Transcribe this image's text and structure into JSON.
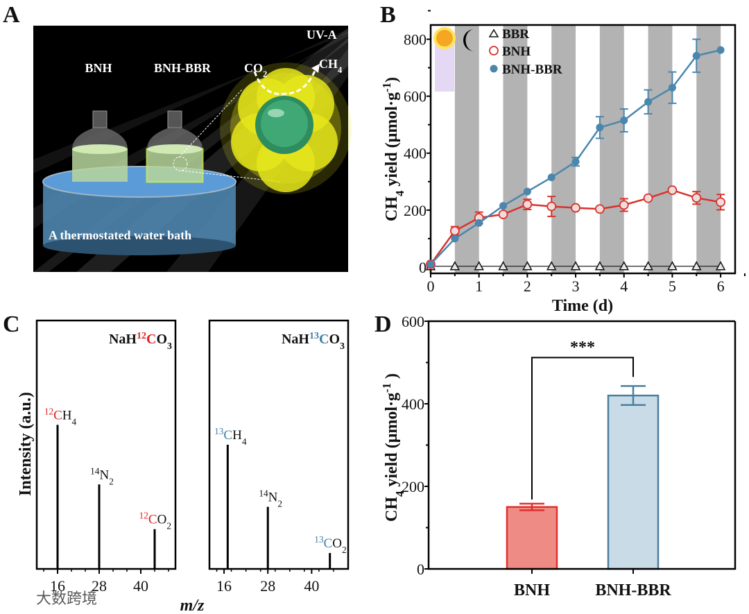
{
  "panels": {
    "a": "A",
    "b": "B",
    "c": "C",
    "d": "D"
  },
  "illustration": {
    "bnh": "BNH",
    "bnh_bbr": "BNH-BBR",
    "co2": [
      {
        "t": "CO"
      },
      {
        "t": "2",
        "sub": true
      }
    ],
    "ch4": [
      {
        "t": "CH"
      },
      {
        "t": "4",
        "sub": true
      }
    ],
    "uv": "UV-A",
    "bath": "A thermostated water bath",
    "colors": {
      "uv": "#e0507a",
      "bath": "#4f86b0",
      "liquid": "#b8d69c",
      "cluster": "#e6e61c",
      "core": "#3fa874"
    }
  },
  "watermark": "大数跨境",
  "chart_data": [
    {
      "id": "B",
      "type": "line",
      "title": "",
      "xlabel": "Time (d)",
      "ylabel": [
        {
          "t": "CH"
        },
        {
          "t": "4",
          "sub": true
        },
        {
          "t": " yield (μmol·g"
        },
        {
          "t": "-1",
          "sup": true
        },
        {
          "t": ")"
        }
      ],
      "xlim": [
        0,
        6.3
      ],
      "ylim": [
        -22,
        850
      ],
      "xticks": [
        "0",
        "1",
        "2",
        "3",
        "4",
        "5",
        "6"
      ],
      "yticks": [
        "0",
        "200",
        "400",
        "600",
        "800"
      ],
      "dark_intervals": [
        [
          0.5,
          1
        ],
        [
          1.5,
          2
        ],
        [
          2.5,
          3
        ],
        [
          3.5,
          4
        ],
        [
          4.5,
          5
        ],
        [
          5.5,
          6
        ]
      ],
      "light_dark_icons": [
        "sun-icon",
        "moon-icon"
      ],
      "legend_position": "top-left",
      "series": [
        {
          "name": "BBR",
          "marker": "triangle-open",
          "color": "#222222",
          "x": [
            0,
            0.5,
            1,
            1.5,
            2,
            2.5,
            3,
            3.5,
            4,
            4.5,
            5,
            5.5,
            6
          ],
          "y": [
            3,
            3,
            3,
            3,
            3,
            3,
            3,
            3,
            3,
            3,
            3,
            3,
            3
          ],
          "err": [
            0,
            0,
            0,
            0,
            0,
            0,
            0,
            0,
            0,
            0,
            0,
            0,
            0
          ]
        },
        {
          "name": "BNH",
          "marker": "circle-open",
          "color": "#d8322c",
          "x": [
            0,
            0.5,
            1,
            1.5,
            2,
            2.5,
            3,
            3.5,
            4,
            4.5,
            5,
            5.5,
            6
          ],
          "y": [
            10,
            127,
            173,
            185,
            220,
            213,
            208,
            204,
            218,
            242,
            270,
            243,
            228
          ],
          "err": [
            0,
            15,
            20,
            0,
            18,
            35,
            0,
            0,
            22,
            0,
            0,
            22,
            27
          ]
        },
        {
          "name": "BNH-BBR",
          "marker": "circle-filled",
          "color": "#4a86ad",
          "x": [
            0,
            0.5,
            1,
            1.5,
            2,
            2.5,
            3,
            3.5,
            4,
            4.5,
            5,
            5.5,
            6
          ],
          "y": [
            10,
            100,
            155,
            215,
            265,
            315,
            370,
            490,
            515,
            580,
            630,
            742,
            762
          ],
          "err": [
            0,
            0,
            0,
            0,
            0,
            0,
            15,
            38,
            40,
            42,
            55,
            58,
            0
          ]
        }
      ]
    },
    {
      "id": "C-left",
      "type": "bar",
      "title": [
        {
          "t": "NaH"
        },
        {
          "t": "12",
          "sup": true,
          "color": "#e02020"
        },
        {
          "t": "C",
          "color": "#e02020"
        },
        {
          "t": "O"
        },
        {
          "t": "3",
          "sub": true
        }
      ],
      "xlabel": "m/z",
      "ylabel": "Intensity (a.u.)",
      "xlim": [
        10,
        50
      ],
      "xticks": [
        "16",
        "28",
        "40"
      ],
      "peaks": [
        {
          "mz": 16,
          "intensity": 0.58,
          "label": [
            {
              "t": "12",
              "sup": true,
              "color": "#e02020"
            },
            {
              "t": "C",
              "color": "#e02020"
            },
            {
              "t": "H"
            },
            {
              "t": "4",
              "sub": true
            }
          ]
        },
        {
          "mz": 28,
          "intensity": 0.34,
          "label": [
            {
              "t": "14",
              "sup": true
            },
            {
              "t": "N"
            },
            {
              "t": "2",
              "sub": true
            }
          ]
        },
        {
          "mz": 44,
          "intensity": 0.16,
          "label": [
            {
              "t": "12",
              "sup": true,
              "color": "#e02020"
            },
            {
              "t": "C",
              "color": "#e02020"
            },
            {
              "t": "O"
            },
            {
              "t": "2",
              "sub": true
            }
          ]
        }
      ]
    },
    {
      "id": "C-right",
      "type": "bar",
      "title": [
        {
          "t": "NaH"
        },
        {
          "t": "13",
          "sup": true,
          "color": "#3f7fa6"
        },
        {
          "t": "C",
          "color": "#3f7fa6"
        },
        {
          "t": "O"
        },
        {
          "t": "3",
          "sub": true
        }
      ],
      "xlim": [
        12,
        50
      ],
      "xticks": [
        "16",
        "28",
        "40"
      ],
      "peaks": [
        {
          "mz": 17,
          "intensity": 0.5,
          "label": [
            {
              "t": "13",
              "sup": true,
              "color": "#3f7fa6"
            },
            {
              "t": "C",
              "color": "#3f7fa6"
            },
            {
              "t": "H"
            },
            {
              "t": "4",
              "sub": true
            }
          ]
        },
        {
          "mz": 28,
          "intensity": 0.25,
          "label": [
            {
              "t": "14",
              "sup": true
            },
            {
              "t": "N"
            },
            {
              "t": "2",
              "sub": true
            }
          ]
        },
        {
          "mz": 45,
          "intensity": 0.064,
          "label": [
            {
              "t": "13",
              "sup": true,
              "color": "#3f7fa6"
            },
            {
              "t": "C",
              "color": "#3f7fa6"
            },
            {
              "t": "O"
            },
            {
              "t": "2",
              "sub": true
            }
          ]
        }
      ]
    },
    {
      "id": "D",
      "type": "bar",
      "title": "",
      "categories": [
        "BNH",
        "BNH-BBR"
      ],
      "values": [
        150,
        420
      ],
      "errors": [
        8,
        23
      ],
      "fill_colors": [
        "#ee8b85",
        "#c8dbe6"
      ],
      "stroke_colors": [
        "#e0302a",
        "#4a7fa0"
      ],
      "ylabel": [
        {
          "t": "CH"
        },
        {
          "t": "4",
          "sub": true
        },
        {
          "t": " yield (μmol·g"
        },
        {
          "t": "-1",
          "sup": true
        },
        {
          "t": " )"
        }
      ],
      "ylim": [
        0,
        600
      ],
      "yticks": [
        "0",
        "200",
        "400",
        "600"
      ],
      "significance": "***"
    }
  ]
}
